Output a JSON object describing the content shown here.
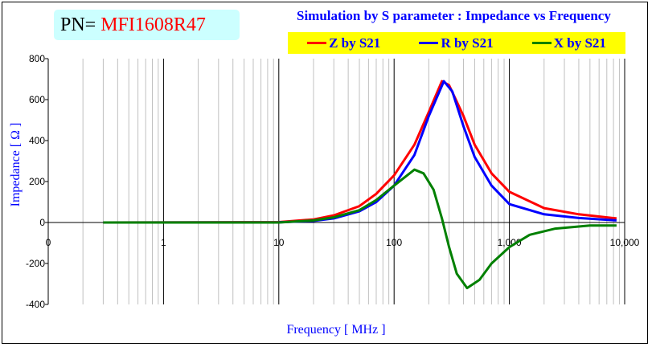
{
  "header": {
    "pn_label": "PN=",
    "pn_value": "MFI1608R47"
  },
  "chart_data": {
    "type": "line",
    "title": "Simulation by S parameter : Impedance vs Frequency",
    "xlabel": "Frequency [ MHz ]",
    "ylabel": "Impedance [ Ω ]",
    "xscale": "log",
    "xlim": [
      0.1,
      10000
    ],
    "ylim": [
      -400,
      800
    ],
    "xticks": [
      {
        "v": 0.1,
        "label": "0"
      },
      {
        "v": 1,
        "label": "1"
      },
      {
        "v": 10,
        "label": "10"
      },
      {
        "v": 100,
        "label": "100"
      },
      {
        "v": 1000,
        "label": "1,000"
      },
      {
        "v": 10000,
        "label": "10,000"
      }
    ],
    "yticks": [
      -400,
      -200,
      0,
      200,
      400,
      600,
      800
    ],
    "legend_position": "top",
    "series": [
      {
        "name": "Z by S21",
        "color": "#ff0000",
        "points": [
          [
            0.3,
            0
          ],
          [
            10,
            2
          ],
          [
            20,
            15
          ],
          [
            30,
            35
          ],
          [
            50,
            80
          ],
          [
            70,
            140
          ],
          [
            100,
            230
          ],
          [
            150,
            380
          ],
          [
            200,
            540
          ],
          [
            260,
            690
          ],
          [
            300,
            670
          ],
          [
            400,
            520
          ],
          [
            500,
            380
          ],
          [
            700,
            240
          ],
          [
            1000,
            150
          ],
          [
            2000,
            70
          ],
          [
            4000,
            40
          ],
          [
            8500,
            20
          ]
        ]
      },
      {
        "name": "R by S21",
        "color": "#0000ff",
        "points": [
          [
            0.3,
            0
          ],
          [
            10,
            1
          ],
          [
            20,
            8
          ],
          [
            30,
            20
          ],
          [
            50,
            55
          ],
          [
            70,
            100
          ],
          [
            100,
            180
          ],
          [
            150,
            330
          ],
          [
            200,
            520
          ],
          [
            270,
            690
          ],
          [
            320,
            640
          ],
          [
            400,
            470
          ],
          [
            500,
            320
          ],
          [
            700,
            180
          ],
          [
            1000,
            90
          ],
          [
            2000,
            40
          ],
          [
            4000,
            22
          ],
          [
            8500,
            10
          ]
        ]
      },
      {
        "name": "X by S21",
        "color": "#008000",
        "points": [
          [
            0.3,
            0
          ],
          [
            10,
            0
          ],
          [
            20,
            10
          ],
          [
            30,
            25
          ],
          [
            50,
            60
          ],
          [
            70,
            110
          ],
          [
            100,
            180
          ],
          [
            150,
            258
          ],
          [
            180,
            240
          ],
          [
            220,
            160
          ],
          [
            260,
            20
          ],
          [
            300,
            -120
          ],
          [
            350,
            -250
          ],
          [
            430,
            -320
          ],
          [
            550,
            -280
          ],
          [
            700,
            -200
          ],
          [
            1000,
            -120
          ],
          [
            1500,
            -60
          ],
          [
            2500,
            -30
          ],
          [
            5000,
            -15
          ],
          [
            8500,
            -15
          ]
        ]
      }
    ]
  }
}
